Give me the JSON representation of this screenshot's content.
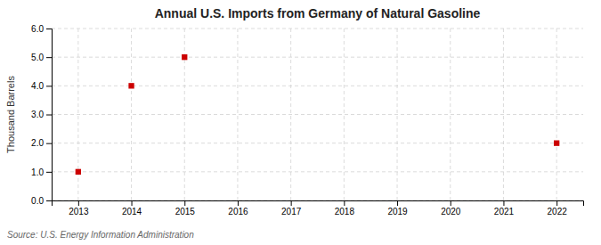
{
  "chart_data": {
    "type": "scatter",
    "title": "Annual U.S. Imports from Germany of Natural Gasoline",
    "ylabel": "Thousand Barrels",
    "annotations": [
      "Source: U.S. Energy Information Administration"
    ],
    "x": [
      2013,
      2014,
      2015,
      2022
    ],
    "values": [
      1.0,
      4.0,
      5.0,
      2.0
    ],
    "color": "#cc0000",
    "marker": "square",
    "xlim": [
      2012.5,
      2022.5
    ],
    "ylim": [
      0.0,
      6.0
    ],
    "xticks": [
      2013,
      2014,
      2015,
      2016,
      2017,
      2018,
      2019,
      2020,
      2021,
      2022
    ],
    "yticks": [
      {
        "value": 0.0,
        "label": "0.0"
      },
      {
        "value": 1.0,
        "label": "1.0"
      },
      {
        "value": 2.0,
        "label": "2.0"
      },
      {
        "value": 3.0,
        "label": "3.0"
      },
      {
        "value": 4.0,
        "label": "4.0"
      },
      {
        "value": 5.0,
        "label": "5.0"
      },
      {
        "value": 6.0,
        "label": "6.0"
      }
    ],
    "grid": true
  }
}
